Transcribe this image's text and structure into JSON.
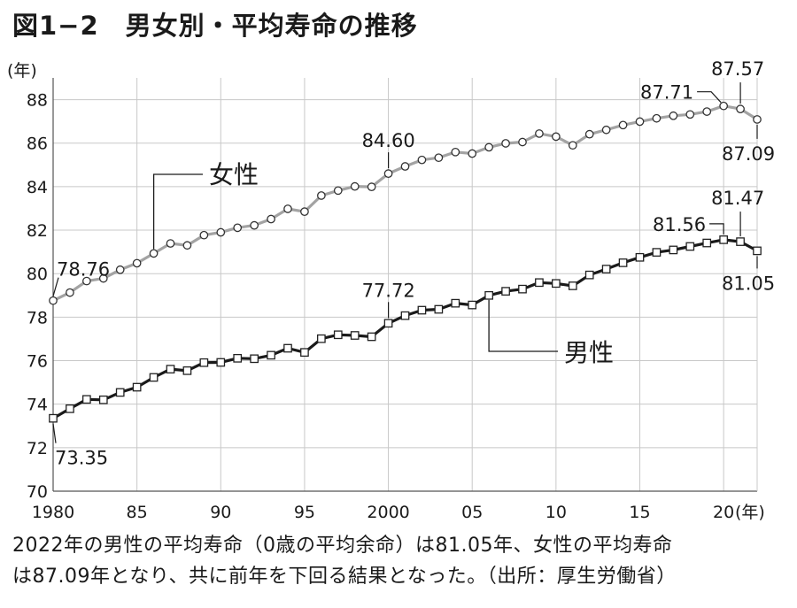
{
  "title": "図1−2　男女別・平均寿命の推移",
  "caption": {
    "line1": "2022年の男性の平均寿命（0歳の平均余命）は81.05年、女性の平均寿命",
    "line2": "は87.09年となり、共に前年を下回る結果となった。（出所：厚生労働省）"
  },
  "chart_data": {
    "type": "line",
    "y_unit_label": "(年)",
    "x_unit_label": "(年)",
    "ylim": [
      70,
      89
    ],
    "xlim": [
      1980,
      2022
    ],
    "yticks": [
      "70",
      "72",
      "74",
      "76",
      "78",
      "80",
      "82",
      "84",
      "86",
      "88"
    ],
    "xticks": [
      {
        "value": 1980,
        "label": "1980"
      },
      {
        "value": 1985,
        "label": "85"
      },
      {
        "value": 1990,
        "label": "90"
      },
      {
        "value": 1995,
        "label": "95"
      },
      {
        "value": 2000,
        "label": "2000"
      },
      {
        "value": 2005,
        "label": "05"
      },
      {
        "value": 2010,
        "label": "10"
      },
      {
        "value": 2015,
        "label": "15"
      },
      {
        "value": 2020,
        "label": "20"
      }
    ],
    "grid": true,
    "x": [
      1980,
      1981,
      1982,
      1983,
      1984,
      1985,
      1986,
      1987,
      1988,
      1989,
      1990,
      1991,
      1992,
      1993,
      1994,
      1995,
      1996,
      1997,
      1998,
      1999,
      2000,
      2001,
      2002,
      2003,
      2004,
      2005,
      2006,
      2007,
      2008,
      2009,
      2010,
      2011,
      2012,
      2013,
      2014,
      2015,
      2016,
      2017,
      2018,
      2019,
      2020,
      2021,
      2022
    ],
    "series": [
      {
        "name": "女性",
        "marker": "circle",
        "line_color": "#a3a3a3",
        "values": [
          78.76,
          79.13,
          79.66,
          79.78,
          80.18,
          80.48,
          80.93,
          81.39,
          81.3,
          81.77,
          81.9,
          82.11,
          82.22,
          82.51,
          82.98,
          82.85,
          83.59,
          83.82,
          84.01,
          83.99,
          84.6,
          84.93,
          85.23,
          85.33,
          85.59,
          85.52,
          85.81,
          85.99,
          86.05,
          86.44,
          86.3,
          85.9,
          86.41,
          86.61,
          86.83,
          86.99,
          87.14,
          87.26,
          87.32,
          87.45,
          87.71,
          87.57,
          87.09
        ]
      },
      {
        "name": "男性",
        "marker": "square",
        "line_color": "#1a1a1a",
        "values": [
          73.35,
          73.79,
          74.22,
          74.2,
          74.54,
          74.78,
          75.23,
          75.61,
          75.54,
          75.91,
          75.92,
          76.11,
          76.09,
          76.25,
          76.57,
          76.38,
          77.01,
          77.19,
          77.16,
          77.1,
          77.72,
          78.07,
          78.32,
          78.36,
          78.64,
          78.56,
          79.0,
          79.19,
          79.29,
          79.59,
          79.55,
          79.44,
          79.94,
          80.21,
          80.5,
          80.75,
          80.98,
          81.09,
          81.25,
          81.41,
          81.56,
          81.47,
          81.05
        ]
      }
    ],
    "annotations": [
      "78.76",
      "84.60",
      "87.71",
      "87.57",
      "87.09",
      "73.35",
      "77.72",
      "81.56",
      "81.47",
      "81.05"
    ]
  }
}
